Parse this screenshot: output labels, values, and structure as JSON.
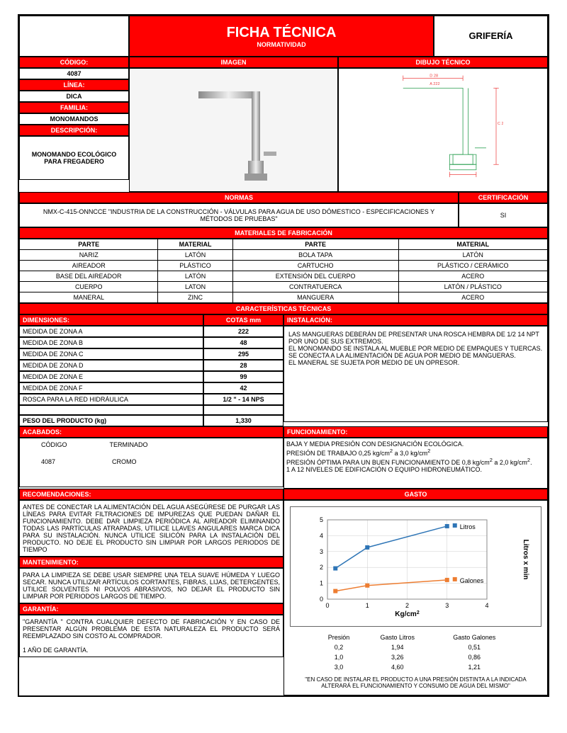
{
  "header": {
    "title": "FICHA TÉCNICA",
    "subtitle": "NORMATIVIDAD",
    "category": "GRIFERÍA"
  },
  "left": {
    "codigo_h": "CÓDIGO:",
    "codigo": "4087",
    "linea_h": "LÍNEA:",
    "linea": "DICA",
    "familia_h": "FAMILIA:",
    "familia": "MONOMANDOS",
    "desc_h": "DESCRIPCIÓN:",
    "desc": "MONOMANDO ECOLÓGICO PARA FREGADERO"
  },
  "imgcol": {
    "h": "IMAGEN"
  },
  "techcol": {
    "h": "DIBUJO TÉCNICO"
  },
  "normas": {
    "h1": "NORMAS",
    "h2": "CERTIFICACIÓN",
    "text": "NMX-C-415-ONNCCE  \"INDUSTRIA DE LA CONSTRUCCIÓN -  VÁLVULAS PARA AGUA DE USO DÓMESTICO - ESPECIFICACIONES Y MÉTODOS DE PRUEBAS\"",
    "cert": "SI"
  },
  "materiales": {
    "h": "MATERIALES DE FABRICACIÓN",
    "cols": [
      "PARTE",
      "MATERIAL",
      "PARTE",
      "MATERIAL"
    ],
    "rows": [
      [
        "NARIZ",
        "LATÓN",
        "BOLA TAPA",
        "LATÓN"
      ],
      [
        "AIREADOR",
        "PLÁSTICO",
        "CARTUCHO",
        "PLÁSTICO / CERÁMICO"
      ],
      [
        "BASE DEL AIREADOR",
        "LATÓN",
        "EXTENSIÓN DEL CUERPO",
        "ACERO"
      ],
      [
        "CUERPO",
        "LATON",
        "CONTRATUERCA",
        "LATÓN / PLÁSTICO"
      ],
      [
        "MANERAL",
        "ZINC",
        "MANGUERA",
        "ACERO"
      ]
    ]
  },
  "caract": {
    "h": "CARACTERÍSTICAS TÉCNICAS",
    "dim_h": "DIMENSIONES:",
    "cotas_h": "COTAS mm",
    "inst_h": "INSTALACIÓN:",
    "dims": [
      [
        "MEDIDA DE ZONA A",
        "222"
      ],
      [
        "MEDIDA DE ZONA B",
        "48"
      ],
      [
        "MEDIDA DE ZONA C",
        "295"
      ],
      [
        "MEDIDA DE ZONA D",
        "28"
      ],
      [
        "MEDIDA DE ZONA E",
        "99"
      ],
      [
        "MEDIDA DE ZONA F",
        "42"
      ],
      [
        "ROSCA PARA LA RED HIDRÁULICA",
        "1/2 \" - 14 NPS"
      ]
    ],
    "peso_h": "PESO DEL PRODUCTO (kg)",
    "peso": "1,330",
    "inst_text": "LAS MANGUERAS DEBERÁN DE PRESENTAR UNA ROSCA HEMBRA DE 1/2 14 NPT POR UNO DE SUS EXTREMOS.\nEL MONOMANDO SE INSTALA AL MUEBLE POR MEDIO DE EMPAQUES Y TUERCAS.\nSE CONECTA A LA ALIMENTACIÓN DE AGUA POR MEDIO DE MANGUERAS.\nEL MANERAL SE SUJETA POR MEDIO DE UN OPRESOR."
  },
  "acabados": {
    "h": "ACABADOS:",
    "c1": "CÓDIGO",
    "c2": "TERMINADO",
    "v1": "4087",
    "v2": "CROMO"
  },
  "func": {
    "h": "FUNCIONAMIENTO:",
    "l1": "BAJA Y MEDIA  PRESIÓN CON DESIGNACIÓN ECOLÓGICA.",
    "l2a": "PRESIÓN DE TRABAJO 0,25 kg/cm",
    "l2b": " a 3,0 kg/cm",
    "l3a": "PRESIÓN ÓPTIMA PARA UN BUEN  FUNCIONAMIENTO DE 0,8 kg/cm",
    "l3b": "  a 2,0 kg/cm",
    "l4": "1 A 12 NIVELES DE EDIFICACIÓN O EQUIPO HIDRONEUMÁTICO."
  },
  "recom": {
    "h": "RECOMENDACIONES:",
    "text": "ANTES DE CONECTAR LA ALIMENTACIÓN DEL AGUA ASEGÚRESE DE PURGAR LAS LÍNEAS PARA EVITAR FILTRACIONES DE IMPUREZAS QUE PUEDAN DAÑAR EL FUNCIONAMIENTO. DEBE DAR LIMPIEZA PERIÓDICA AL AIREADOR ELIMINANDO TODAS LAS PARTÍCULAS ATRAPADAS, UTILICE LLAVES ANGULARES MARCA DICA PARA SU INSTALACIÓN. NUNCA UTILICE SILICÓN PARA LA INSTALACIÓN DEL PRODUCTO. NO DEJE EL PRODUCTO SIN LIMPIAR POR LARGOS PERIODOS DE TIEMPO"
  },
  "mant": {
    "h": "MANTENIMIENTO:",
    "text": "PARA LA LIMPIEZA SE DEBE USAR SIEMPRE UNA TELA SUAVE HÚMEDA Y LUEGO SECAR. NUNCA UTILIZAR ARTÍCULOS CORTANTES, FIBRAS, LIJAS, DETERGENTES, UTILICE SOLVENTES NI POLVOS ABRASIVOS, NO DEJAR EL PRODUCTO SIN LIMPIAR POR PERIODOS LARGOS DE TIEMPO."
  },
  "garantia": {
    "h": "GARANTÍA:",
    "text": "\"GARANTÍA \" CONTRA CUALQUIER DEFECTO DE FABRICACIÓN Y EN CASO DE PRESENTAR ALGÚN PROBLEMA DE ESTA NATURALEZA EL PRODUCTO SERÁ REEMPLAZADO SIN COSTO AL COMPRADOR.",
    "years": "1 AÑO DE GARANTÍA."
  },
  "gasto": {
    "h": "GASTO",
    "xlabel": "Kg/cm",
    "ylabel": "Litros x min",
    "xlim": [
      0,
      4
    ],
    "ylim": [
      0,
      5
    ],
    "xticks": [
      0,
      1,
      2,
      3,
      4
    ],
    "yticks": [
      0,
      1,
      2,
      3,
      4,
      5
    ],
    "series": [
      {
        "name": "Litros",
        "color": "#2e75b6",
        "points": [
          [
            0.2,
            1.94
          ],
          [
            1.0,
            3.26
          ],
          [
            3.0,
            4.6
          ]
        ]
      },
      {
        "name": "Galones",
        "color": "#ed7d31",
        "points": [
          [
            0.2,
            0.51
          ],
          [
            1.0,
            0.86
          ],
          [
            3.0,
            1.21
          ]
        ]
      }
    ],
    "table_h": [
      "Presión",
      "Gasto Litros",
      "Gasto Galones"
    ],
    "table": [
      [
        "0,2",
        "1,94",
        "0,51"
      ],
      [
        "1,0",
        "3,26",
        "0,86"
      ],
      [
        "3,0",
        "4,60",
        "1,21"
      ]
    ],
    "note": "\"EN CASO DE INSTALAR EL PRODUCTO A UNA PRESIÓN DISTINTA A LA INDICADA ALTERARÁ EL FUNCIONAMIENTO Y CONSUMO DE AGUA DEL MISMO\""
  }
}
